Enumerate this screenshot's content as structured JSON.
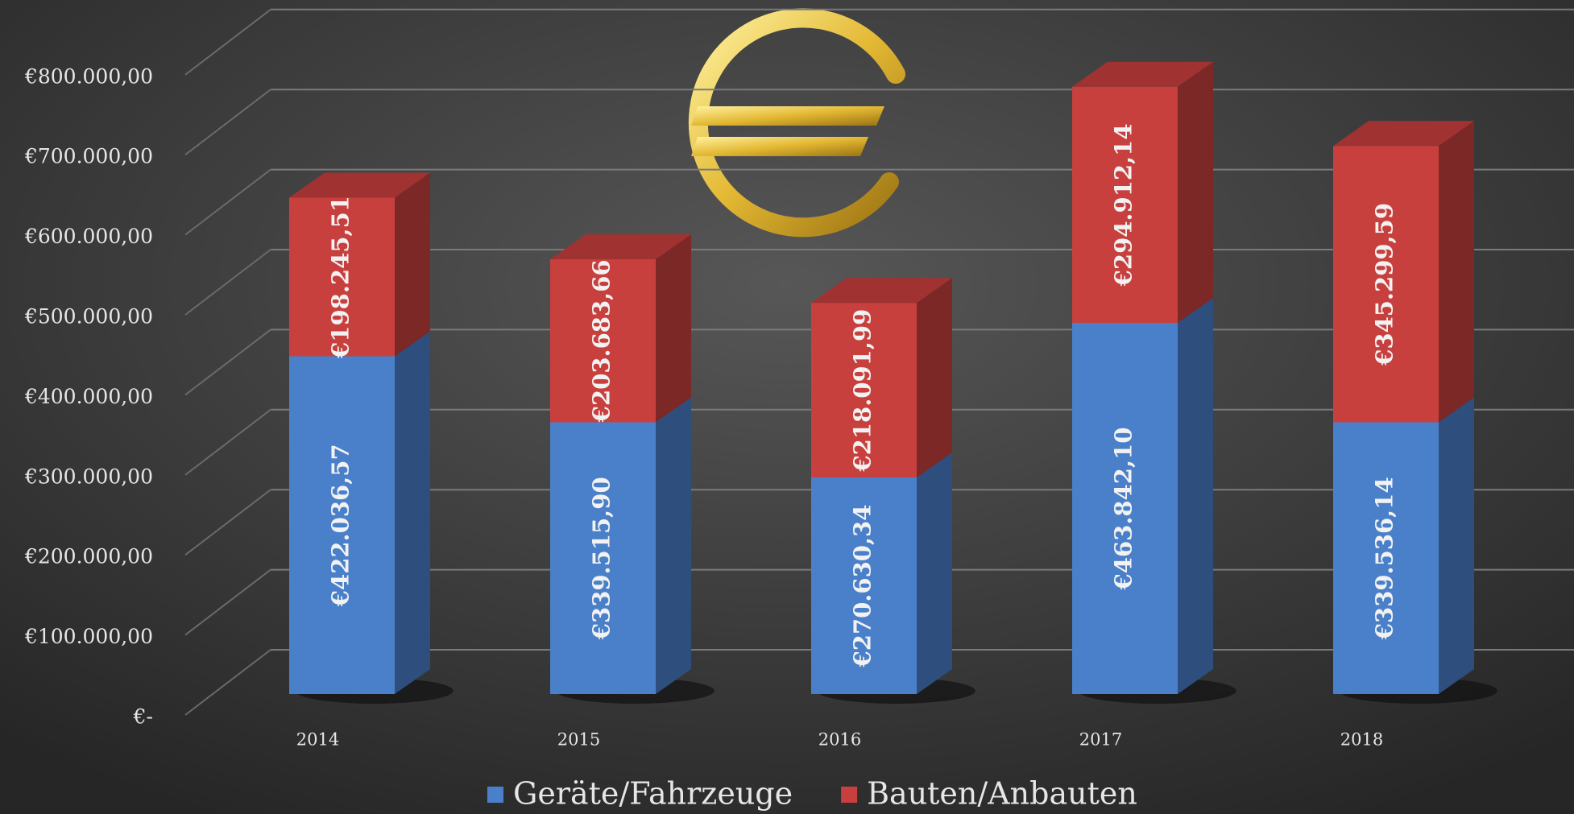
{
  "chart_data": {
    "type": "bar3d_stacked",
    "categories": [
      "2014",
      "2015",
      "2016",
      "2017",
      "2018"
    ],
    "series": [
      {
        "name": "Geräte/Fahrzeuge",
        "color": "#4a80c9",
        "values": [
          422036.57,
          339515.9,
          270630.34,
          463842.1,
          339536.14
        ],
        "value_labels": [
          "€422.036,57",
          "€339.515,90",
          "€270.630,34",
          "€463.842,10",
          "€339.536,14"
        ]
      },
      {
        "name": "Bauten/Anbauten",
        "color": "#c8403e",
        "values": [
          198245.51,
          203683.66,
          218091.99,
          294912.14,
          345299.59
        ],
        "value_labels": [
          "€198.245,51",
          "€203.683,66",
          "€218.091,99",
          "€294.912,14",
          "€345.299,59"
        ]
      }
    ],
    "ylim": [
      0,
      900000
    ],
    "yticks": [
      {
        "value": 0,
        "label": "€-"
      },
      {
        "value": 100000,
        "label": "€100.000,00"
      },
      {
        "value": 200000,
        "label": "€200.000,00"
      },
      {
        "value": 300000,
        "label": "€300.000,00"
      },
      {
        "value": 400000,
        "label": "€400.000,00"
      },
      {
        "value": 500000,
        "label": "€500.000,00"
      },
      {
        "value": 600000,
        "label": "€600.000,00"
      },
      {
        "value": 700000,
        "label": "€700.000,00"
      },
      {
        "value": 800000,
        "label": "€800.000,00"
      }
    ],
    "grid": true
  }
}
